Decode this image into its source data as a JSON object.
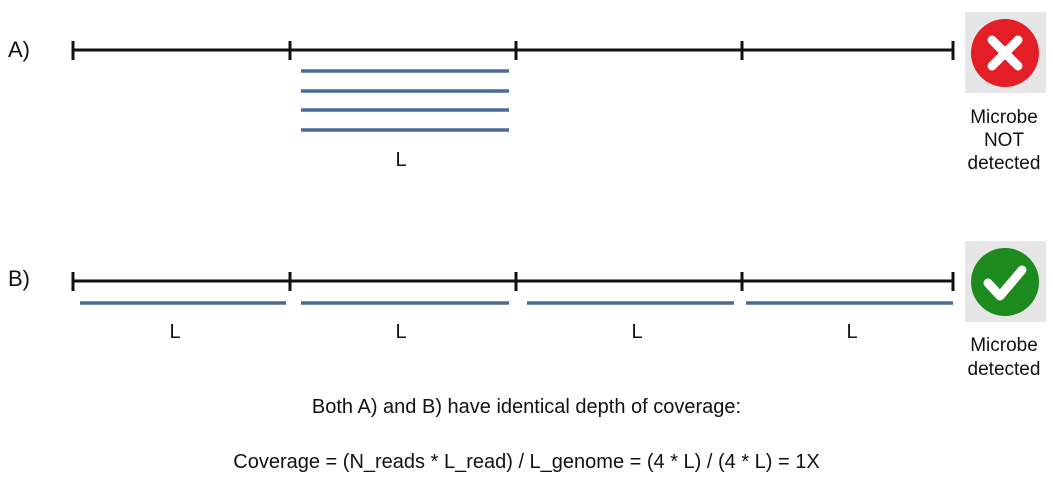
{
  "panels": {
    "a": {
      "label": "A)",
      "read_label": "L",
      "status_lines": [
        "Microbe",
        "NOT",
        "detected"
      ],
      "status_icon": "x-icon",
      "status_color": "#e41e26"
    },
    "b": {
      "label": "B)",
      "read_labels": [
        "L",
        "L",
        "L",
        "L"
      ],
      "status_lines": [
        "Microbe",
        "detected"
      ],
      "status_icon": "check-icon",
      "status_color": "#1d8a1d"
    }
  },
  "caption": {
    "line1": "Both A) and B) have identical depth of coverage:",
    "line2": "Coverage = (N_reads * L_read) / L_genome = (4 * L) / (4 * L) = 1X"
  },
  "colors": {
    "genome_line": "#111111",
    "read_line": "#4a6a9a",
    "icon_background": "#e6e6e6"
  }
}
